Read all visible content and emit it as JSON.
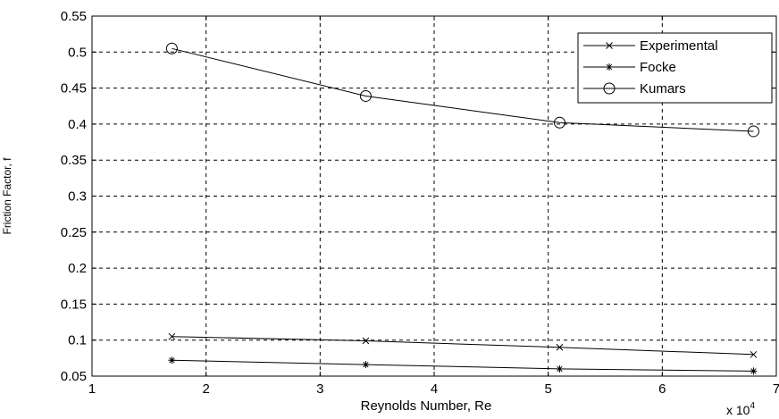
{
  "chart_data": {
    "type": "line",
    "xlabel": "Reynolds Number, Re",
    "ylabel": "Friction Factor, f",
    "x_multiplier_label": "x 10",
    "x_multiplier_exponent": "4",
    "xlim": [
      1,
      7
    ],
    "ylim": [
      0.05,
      0.55
    ],
    "x_ticks": [
      1,
      2,
      3,
      4,
      5,
      6,
      7
    ],
    "x_tick_labels": [
      "1",
      "2",
      "3",
      "4",
      "5",
      "6",
      "7"
    ],
    "y_ticks": [
      0.05,
      0.1,
      0.15,
      0.2,
      0.25,
      0.3,
      0.35,
      0.4,
      0.45,
      0.5,
      0.55
    ],
    "y_tick_labels": [
      "0.05",
      "0.1",
      "0.15",
      "0.2",
      "0.25",
      "0.3",
      "0.35",
      "0.4",
      "0.45",
      "0.5",
      "0.55"
    ],
    "grid": true,
    "legend_position": "top-right",
    "series": [
      {
        "name": "Experimental",
        "marker": "x",
        "color": "#000000",
        "x": [
          1.7,
          3.4,
          5.1,
          6.8
        ],
        "y": [
          0.105,
          0.099,
          0.09,
          0.08
        ]
      },
      {
        "name": "Focke",
        "marker": "star",
        "color": "#000000",
        "x": [
          1.7,
          3.4,
          5.1,
          6.8
        ],
        "y": [
          0.072,
          0.066,
          0.06,
          0.057
        ]
      },
      {
        "name": "Kumars",
        "marker": "circle",
        "color": "#000000",
        "x": [
          1.7,
          3.4,
          5.1,
          6.8
        ],
        "y": [
          0.505,
          0.439,
          0.402,
          0.39
        ]
      }
    ]
  }
}
